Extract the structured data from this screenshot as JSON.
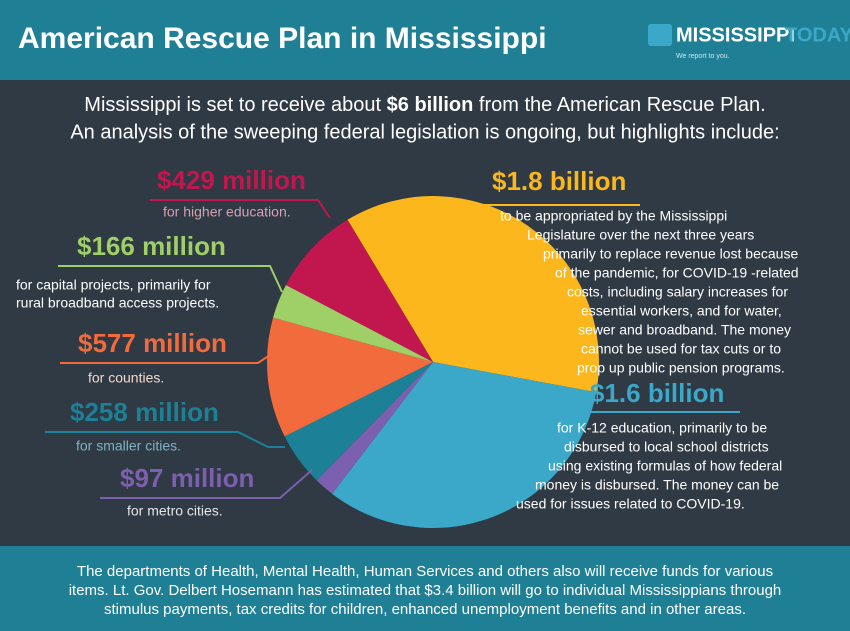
{
  "header": {
    "title": "American Rescue Plan in Mississippi",
    "logo_name": "MISSISSIPPI",
    "logo_name2": "TODAY",
    "logo_tagline": "We report to you."
  },
  "subtitle": {
    "line1": [
      "Mississippi is set to receive about ",
      "$6 billion",
      " from the American Rescue Plan."
    ],
    "line2": "An analysis of the sweeping federal legislation is ongoing, but highlights include:"
  },
  "chart_data": {
    "type": "pie",
    "values": [
      1800,
      1600,
      97,
      258,
      577,
      166,
      429
    ],
    "value_labels": [
      "$1.8 billion",
      "$1.6 billion",
      "$97 million",
      "$258 million",
      "$577 million",
      "$166 million",
      "$429 million"
    ],
    "colors": [
      "#fbb71c",
      "#3ba7c9",
      "#7c5fae",
      "#1c8096",
      "#f26b3c",
      "#9fcf67",
      "#c2164f"
    ],
    "descriptions": [
      [
        "to be appropriated by the Mississippi",
        "Legislature over the next three years",
        "primarily to replace revenue lost because",
        "of the pandemic, for COVID-19 -related",
        "costs, including salary increases for",
        "essential workers, and for water,",
        "sewer and broadband. The money",
        "cannot be used for tax cuts or to",
        "prop up public pension programs."
      ],
      [
        "for K-12 education, primarily to be",
        "disbursed to local school districts",
        "using existing formulas of how federal",
        "money is disbursed. The money can be",
        "used for issues related to COVID-19."
      ],
      [
        "for metro cities."
      ],
      [
        "for smaller cities."
      ],
      [
        "for counties."
      ],
      [
        "for capital projects, primarily for",
        "rural broadband access projects."
      ],
      [
        "for higher education."
      ]
    ]
  },
  "footer": [
    "The departments of Health, Mental Health, Human Services and others also will receive funds for various",
    "items. Lt. Gov. Delbert Hosemann has estimated that $3.4 billion will go to individual Mississippians through",
    "stimulus payments, tax credits for children, enhanced unemployment benefits and in other areas."
  ]
}
